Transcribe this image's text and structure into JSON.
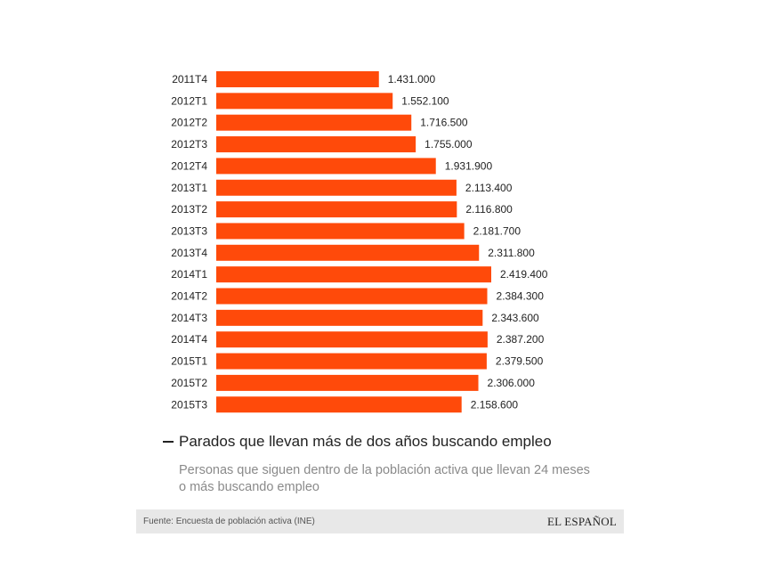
{
  "chart_data": {
    "type": "bar",
    "orientation": "horizontal",
    "title": "Parados que llevan más de dos años buscando empleo",
    "subtitle": "Personas que siguen dentro de la población activa que llevan 24 meses o más buscando empleo",
    "categories": [
      "2011T4",
      "2012T1",
      "2012T2",
      "2012T3",
      "2012T4",
      "2013T1",
      "2013T2",
      "2013T3",
      "2013T4",
      "2014T1",
      "2014T2",
      "2014T3",
      "2014T4",
      "2015T1",
      "2015T2",
      "2015T3"
    ],
    "values": [
      1431000,
      1552100,
      1716500,
      1755000,
      1931900,
      2113400,
      2116800,
      2181700,
      2311800,
      2419400,
      2384300,
      2343600,
      2387200,
      2379500,
      2306000,
      2158600
    ],
    "value_labels": [
      "1.431.000",
      "1.552.100",
      "1.716.500",
      "1.755.000",
      "1.931.900",
      "2.113.400",
      "2.116.800",
      "2.181.700",
      "2.311.800",
      "2.419.400",
      "2.384.300",
      "2.343.600",
      "2.387.200",
      "2.379.500",
      "2.306.000",
      "2.158.600"
    ],
    "xlim": [
      0,
      2419400
    ],
    "bar_color": "#ff4a0a",
    "grid": false
  },
  "legend": {
    "label": "Parados que llevan más de dos años buscando empleo"
  },
  "subtitle": "Personas que siguen dentro de la población activa que llevan 24 meses o más buscando empleo",
  "footer": {
    "source": "Fuente: Encuesta de población activa (INE)",
    "brand": "EL ESPAÑOL"
  }
}
